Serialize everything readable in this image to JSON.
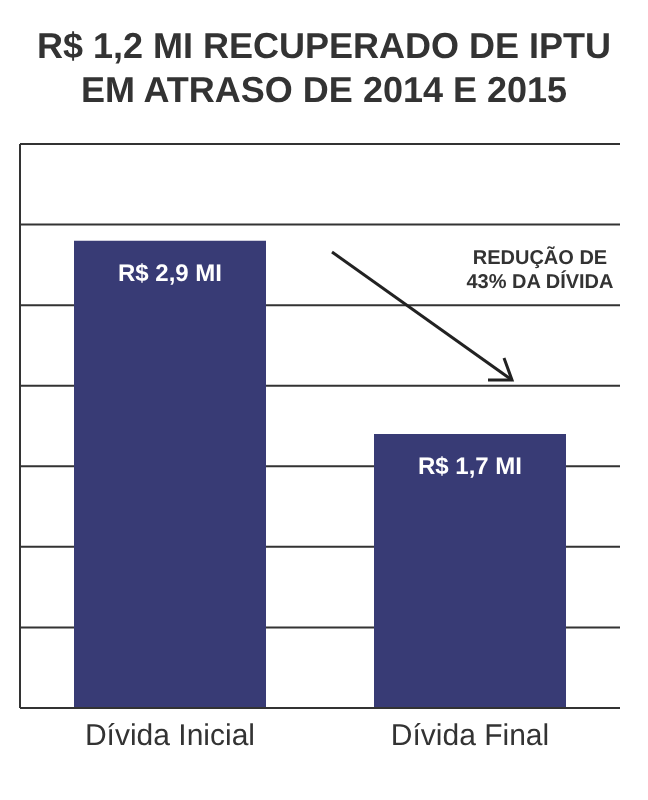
{
  "chart_data": {
    "type": "bar",
    "title": "R$ 1,2 MI RECUPERADO DE IPTU EM ATRASO DE 2014 E 2015",
    "categories": [
      "Dívida Inicial",
      "Dívida Final"
    ],
    "values": [
      2.9,
      1.7
    ],
    "color": "#383b75",
    "value_labels": [
      "R$ 2,9 MI",
      "R$ 1,7 MI"
    ],
    "ylim": [
      0,
      3.5
    ],
    "yticks": [
      {
        "value": 0,
        "label": null
      },
      {
        "value": 0.5,
        "label": null
      },
      {
        "value": 1,
        "label": null
      },
      {
        "value": 1.5,
        "label": null
      },
      {
        "value": 2,
        "label": null
      },
      {
        "value": 2.5,
        "label": null
      },
      {
        "value": 3,
        "label": null
      },
      {
        "value": 3.5,
        "label": null
      }
    ],
    "grid": "y",
    "tick_labels": "x",
    "annotations": [
      "REDUÇÃO DE 43% DA DÍVIDA"
    ]
  }
}
